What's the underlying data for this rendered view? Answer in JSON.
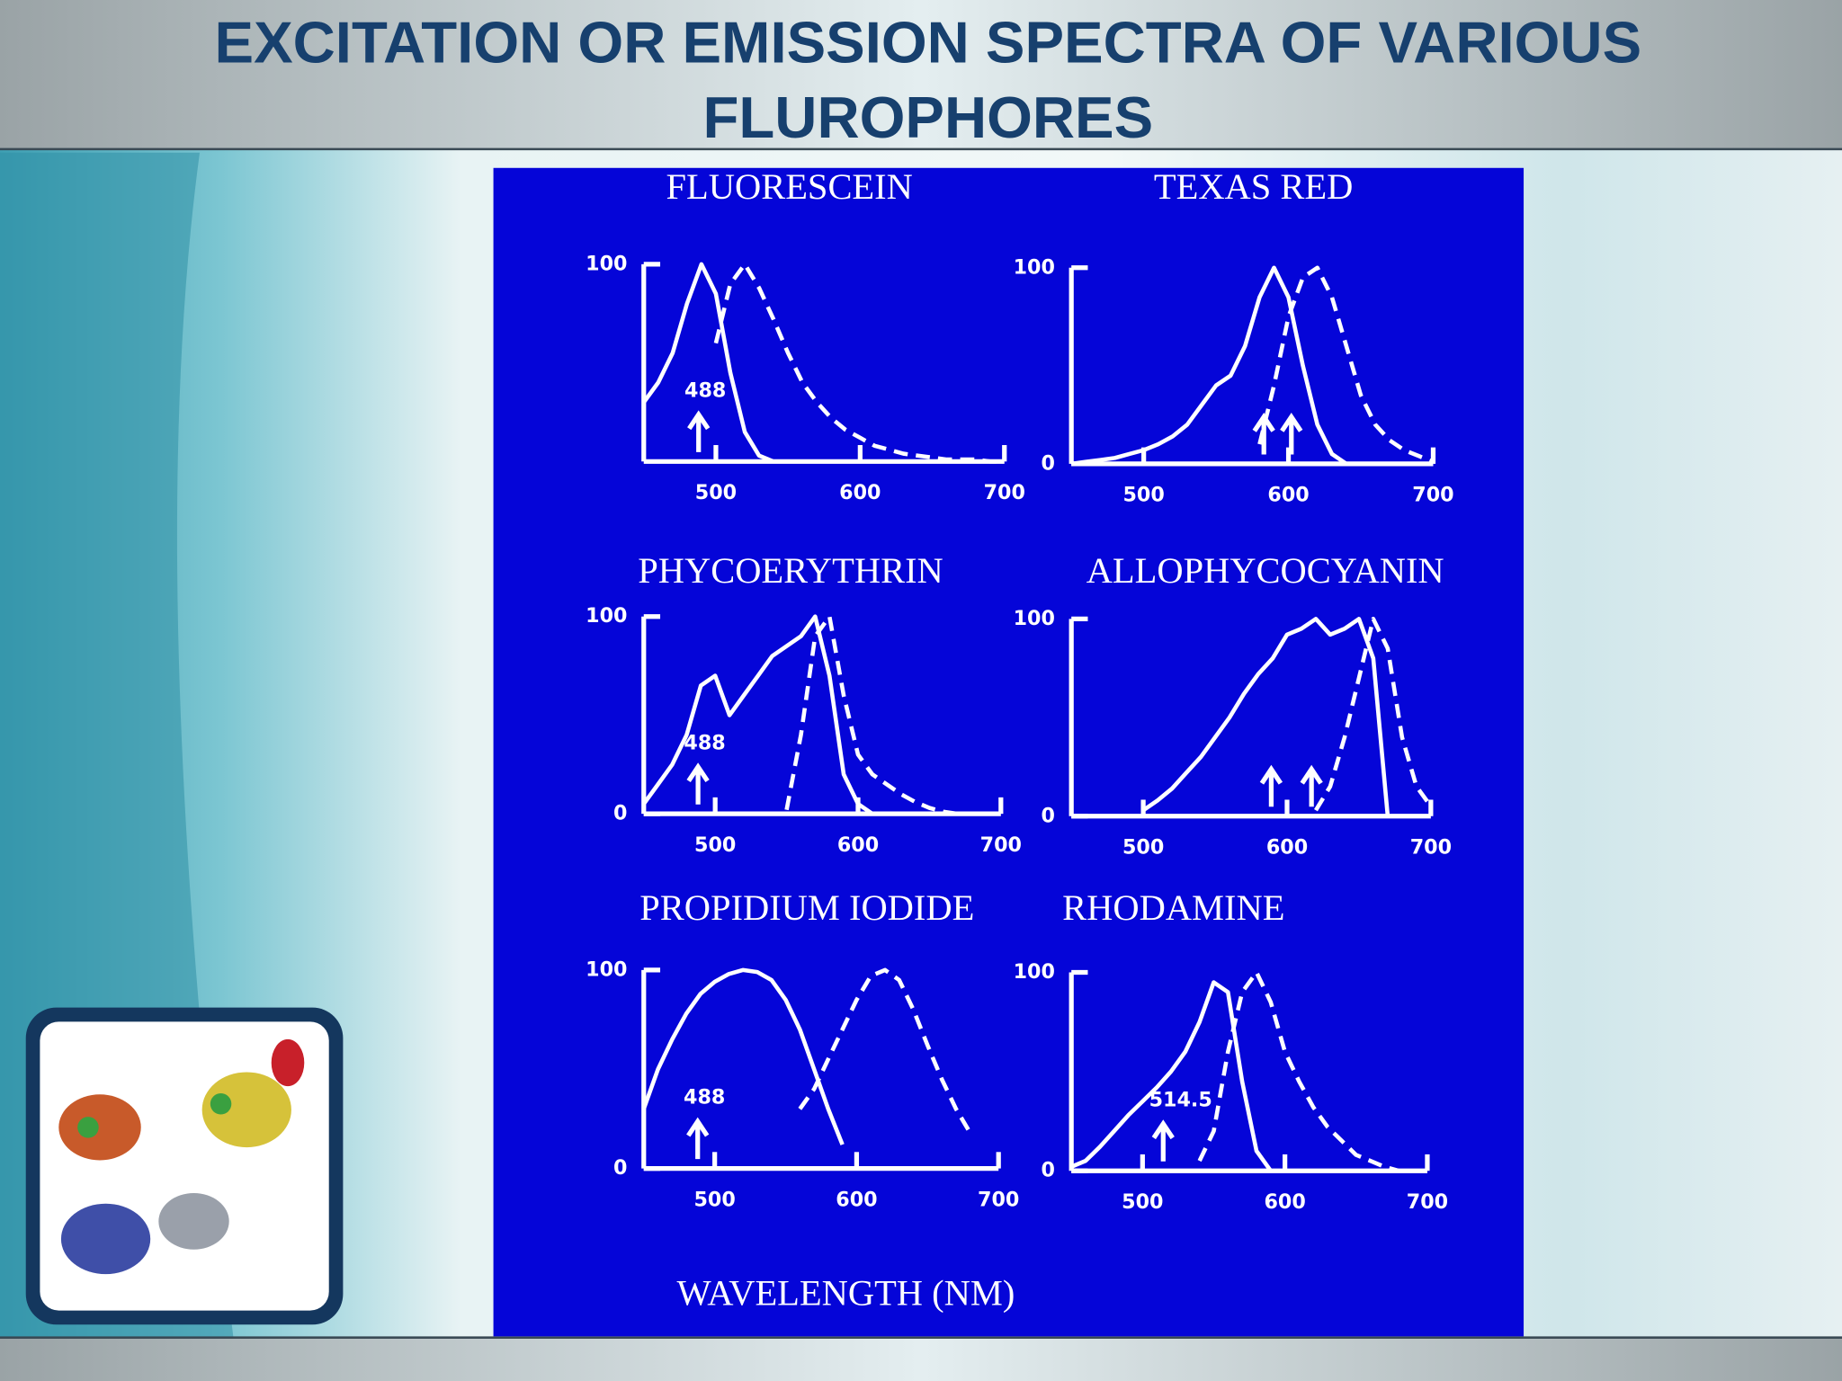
{
  "slide": {
    "title_lines": [
      "EXCITATION  OR  EMISSION SPECTRA OF VARIOUS",
      "FLUROPHORES"
    ],
    "x_label": "WAVELENGTH  (NM)"
  },
  "chart_data": [
    {
      "type": "line",
      "title": "FLUORESCEIN",
      "xlim": [
        450,
        700
      ],
      "xticks": [
        500,
        600,
        700
      ],
      "ylim": [
        0,
        100
      ],
      "yticks": [
        100
      ],
      "x": [
        450,
        460,
        470,
        480,
        490,
        500,
        510,
        520,
        530,
        540,
        550,
        560,
        570,
        580,
        590,
        600,
        610,
        620,
        630,
        640,
        650,
        660,
        670,
        680,
        690,
        700
      ],
      "series": [
        {
          "color": "#ffffff",
          "dash": false,
          "values": [
            30,
            40,
            55,
            80,
            100,
            85,
            45,
            15,
            3,
            0,
            null,
            null,
            null,
            null,
            null,
            null,
            null,
            null,
            null,
            null,
            null,
            null,
            null,
            null,
            null,
            null
          ]
        },
        {
          "color": "#ffffff",
          "dash": true,
          "values": [
            null,
            null,
            null,
            null,
            null,
            60,
            90,
            100,
            88,
            72,
            55,
            40,
            30,
            22,
            16,
            12,
            8,
            6,
            4,
            3,
            2,
            1,
            1,
            1,
            0,
            0
          ]
        }
      ],
      "annotations": [
        {
          "x": 488,
          "text": "488"
        }
      ]
    },
    {
      "type": "line",
      "title": "TEXAS RED",
      "xlim": [
        450,
        700
      ],
      "xticks": [
        500,
        600,
        700
      ],
      "ylim": [
        0,
        100
      ],
      "yticks": [
        0,
        100
      ],
      "x": [
        450,
        460,
        470,
        480,
        490,
        500,
        510,
        520,
        530,
        540,
        550,
        560,
        570,
        580,
        590,
        600,
        610,
        620,
        630,
        640,
        650,
        660,
        670,
        680,
        690,
        700
      ],
      "series": [
        {
          "color": "#ffffff",
          "dash": false,
          "values": [
            0,
            1,
            2,
            3,
            5,
            7,
            10,
            14,
            20,
            30,
            40,
            45,
            60,
            85,
            100,
            85,
            50,
            20,
            5,
            0,
            null,
            null,
            null,
            null,
            null,
            null
          ]
        },
        {
          "color": "#ffffff",
          "dash": true,
          "values": [
            null,
            null,
            null,
            null,
            null,
            null,
            null,
            null,
            null,
            null,
            null,
            null,
            null,
            10,
            40,
            75,
            95,
            100,
            85,
            60,
            35,
            20,
            12,
            7,
            4,
            1
          ]
        }
      ],
      "annotations": [
        {
          "x": 583
        },
        {
          "x": 602
        }
      ]
    },
    {
      "type": "line",
      "title": "PHYCOERYTHRIN",
      "xlim": [
        450,
        700
      ],
      "xticks": [
        500,
        600,
        700
      ],
      "ylim": [
        0,
        100
      ],
      "yticks": [
        0,
        100
      ],
      "x": [
        450,
        460,
        470,
        480,
        490,
        500,
        510,
        520,
        530,
        540,
        550,
        560,
        570,
        580,
        590,
        600,
        610,
        620,
        630,
        640,
        650,
        660,
        670,
        680,
        690,
        700
      ],
      "series": [
        {
          "color": "#ffffff",
          "dash": false,
          "values": [
            5,
            15,
            25,
            40,
            65,
            70,
            50,
            60,
            70,
            80,
            85,
            90,
            100,
            70,
            20,
            5,
            0,
            null,
            null,
            null,
            null,
            null,
            null,
            null,
            null,
            null
          ]
        },
        {
          "color": "#ffffff",
          "dash": true,
          "values": [
            null,
            null,
            null,
            null,
            null,
            null,
            null,
            null,
            null,
            null,
            2,
            40,
            90,
            100,
            60,
            30,
            20,
            15,
            10,
            6,
            3,
            1,
            0,
            null,
            null,
            null
          ]
        }
      ],
      "annotations": [
        {
          "x": 488,
          "text": "488"
        }
      ]
    },
    {
      "type": "line",
      "title": "ALLOPHYCOCYANIN",
      "xlim": [
        450,
        700
      ],
      "xticks": [
        500,
        600,
        700
      ],
      "ylim": [
        0,
        100
      ],
      "yticks": [
        0,
        100
      ],
      "x": [
        450,
        460,
        470,
        480,
        490,
        500,
        510,
        520,
        530,
        540,
        550,
        560,
        570,
        580,
        590,
        600,
        610,
        620,
        630,
        640,
        650,
        660,
        670,
        680,
        690,
        700
      ],
      "series": [
        {
          "color": "#ffffff",
          "dash": false,
          "values": [
            null,
            null,
            null,
            null,
            null,
            3,
            8,
            14,
            22,
            30,
            40,
            50,
            62,
            72,
            80,
            92,
            95,
            100,
            92,
            95,
            100,
            80,
            0,
            null,
            null,
            null
          ]
        },
        {
          "color": "#ffffff",
          "dash": true,
          "values": [
            null,
            null,
            null,
            null,
            null,
            null,
            null,
            null,
            null,
            null,
            null,
            null,
            null,
            null,
            null,
            null,
            null,
            3,
            15,
            40,
            70,
            100,
            85,
            40,
            15,
            5
          ]
        }
      ],
      "annotations": [
        {
          "x": 589
        },
        {
          "x": 617
        }
      ]
    },
    {
      "type": "line",
      "title": "PROPIDIUM IODIDE",
      "xlim": [
        450,
        700
      ],
      "xticks": [
        500,
        600,
        700
      ],
      "ylim": [
        0,
        100
      ],
      "yticks": [
        0,
        100
      ],
      "x": [
        450,
        460,
        470,
        480,
        490,
        500,
        510,
        520,
        530,
        540,
        550,
        560,
        570,
        580,
        590,
        600,
        610,
        620,
        630,
        640,
        650,
        660,
        670,
        680,
        690,
        700
      ],
      "series": [
        {
          "color": "#ffffff",
          "dash": false,
          "values": [
            30,
            50,
            65,
            78,
            88,
            94,
            98,
            100,
            99,
            95,
            85,
            70,
            50,
            30,
            12,
            null,
            null,
            null,
            null,
            null,
            null,
            null,
            null,
            null,
            null,
            null
          ]
        },
        {
          "color": "#ffffff",
          "dash": true,
          "values": [
            null,
            null,
            null,
            null,
            null,
            null,
            null,
            null,
            null,
            null,
            null,
            30,
            40,
            55,
            70,
            85,
            97,
            100,
            95,
            80,
            62,
            45,
            30,
            18,
            null,
            null
          ]
        }
      ],
      "annotations": [
        {
          "x": 488,
          "text": "488"
        }
      ]
    },
    {
      "type": "line",
      "title": "RHODAMINE",
      "xlim": [
        450,
        700
      ],
      "xticks": [
        500,
        600,
        700
      ],
      "ylim": [
        0,
        100
      ],
      "yticks": [
        0,
        100
      ],
      "x": [
        450,
        460,
        470,
        480,
        490,
        500,
        510,
        520,
        530,
        540,
        550,
        560,
        570,
        580,
        590,
        600,
        610,
        620,
        630,
        640,
        650,
        660,
        670,
        680,
        690,
        700
      ],
      "series": [
        {
          "color": "#ffffff",
          "dash": false,
          "values": [
            2,
            5,
            12,
            20,
            28,
            35,
            42,
            50,
            60,
            75,
            95,
            90,
            45,
            10,
            0,
            null,
            null,
            null,
            null,
            null,
            null,
            null,
            null,
            null,
            null,
            null
          ]
        },
        {
          "color": "#ffffff",
          "dash": true,
          "values": [
            null,
            null,
            null,
            null,
            null,
            null,
            null,
            null,
            null,
            5,
            20,
            60,
            90,
            100,
            85,
            60,
            45,
            32,
            22,
            15,
            8,
            5,
            2,
            0,
            null,
            null
          ]
        }
      ],
      "annotations": [
        {
          "x": 514.5,
          "text": "514.5"
        }
      ]
    }
  ]
}
